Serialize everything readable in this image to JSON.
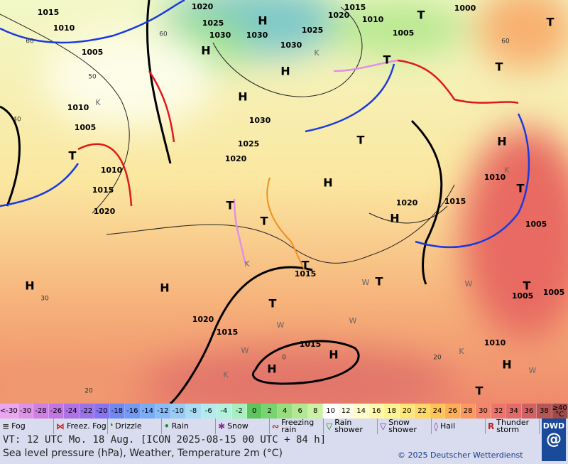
{
  "map": {
    "labels": [
      "1015",
      "1010",
      "1005",
      "1020",
      "1025",
      "1030",
      "1030",
      "1030",
      "H",
      "H",
      "1025",
      "1020",
      "1015",
      "1010",
      "1005",
      "T",
      "1000",
      "T",
      "T",
      "H",
      "H",
      "1030",
      "1010",
      "1005",
      "1025",
      "1020",
      "T",
      "1010",
      "1015",
      "1020",
      "H",
      "T",
      "T",
      "H",
      "1010",
      "1015",
      "1020",
      "H",
      "T",
      "1005",
      "T",
      "T",
      "T",
      "1015",
      "H",
      "H",
      "T",
      "T",
      "1005",
      "1005",
      "T",
      "1020",
      "1015",
      "1015",
      "H",
      "H",
      "1010",
      "H",
      "T"
    ],
    "grid_labels": [
      "60",
      "50",
      "40",
      "30",
      "20",
      "60",
      "0",
      "20",
      "60"
    ],
    "markers": [
      "K",
      "K",
      "K",
      "K",
      "K",
      "K",
      "W",
      "W",
      "W",
      "W",
      "W",
      "W"
    ]
  },
  "legend": {
    "temperature_labels": [
      "<-30",
      "-30",
      "-28",
      "-26",
      "-24",
      "-22",
      "-20",
      "-18",
      "-16",
      "-14",
      "-12",
      "-10",
      "-8",
      "-6",
      "-4",
      "-2",
      "0",
      "2",
      "4",
      "6",
      "8",
      "10",
      "12",
      "14",
      "16",
      "18",
      "20",
      "22",
      "24",
      "26",
      "28",
      "30",
      "32",
      "34",
      "36",
      "38",
      "≥40 °C"
    ],
    "temperature_colors": [
      "#eaa6f0",
      "#de92e8",
      "#d07fe2",
      "#c276e2",
      "#ae72e6",
      "#9a72ec",
      "#8674f2",
      "#6f88f2",
      "#719af6",
      "#78acf8",
      "#88bcf8",
      "#98ccf6",
      "#aadcf4",
      "#b2eaee",
      "#b2f2dc",
      "#a6f0c0",
      "#5cc65c",
      "#78d46e",
      "#98de80",
      "#b2e892",
      "#ccf0a4",
      "#ffffff",
      "#fcfcea",
      "#fefcc8",
      "#fff8aa",
      "#fff290",
      "#ffe878",
      "#ffd866",
      "#ffc456",
      "#ffae56",
      "#fc9860",
      "#f4846c",
      "#ec746c",
      "#e26a68",
      "#d26262",
      "#b85656",
      "#9c4a4a"
    ],
    "weather": [
      "Fog",
      "Freez. Fog",
      "Drizzle",
      "Rain",
      "Snow",
      "Freezing rain",
      "Rain shower",
      "Snow shower",
      "Hail",
      "Thunder storm"
    ]
  },
  "footer": {
    "valid_time": "VT: 12 UTC Mo.  18 Aug. [ICON 2025-08-15  00 UTC + 84 h]",
    "description": "Sea level pressure (hPa), Weather, Temperature 2m (°C)",
    "copyright": "© 2025 Deutscher Wetterdienst",
    "logo": "DWD"
  }
}
